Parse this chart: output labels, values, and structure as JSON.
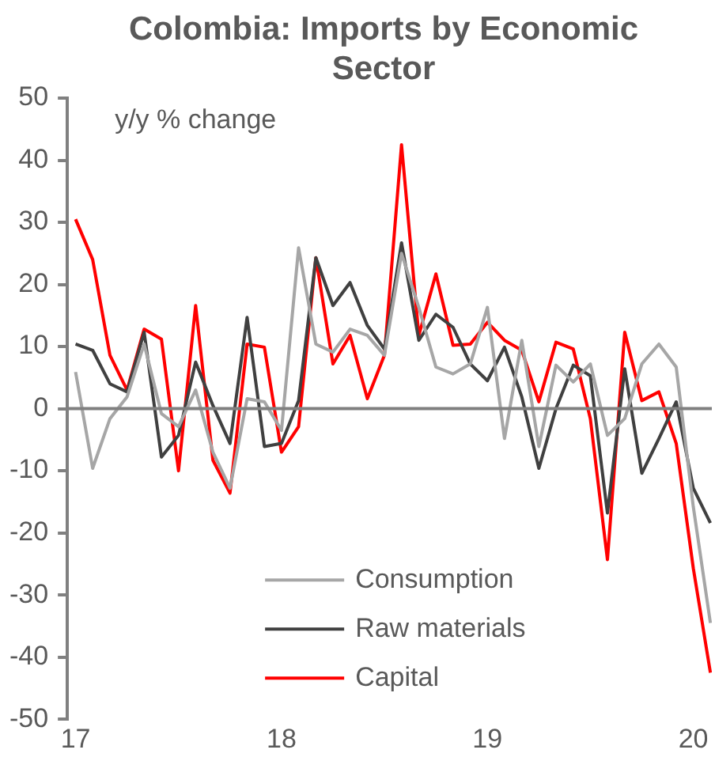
{
  "chart_data": {
    "type": "line",
    "title": "Colombia: Imports by Economic Sector",
    "annotations": [
      "y/y % change"
    ],
    "x": [
      17,
      17.083,
      17.167,
      17.25,
      17.333,
      17.417,
      17.5,
      17.583,
      17.667,
      17.75,
      17.833,
      17.917,
      18,
      18.083,
      18.167,
      18.25,
      18.333,
      18.417,
      18.5,
      18.583,
      18.667,
      18.75,
      18.833,
      18.917,
      19,
      19.083,
      19.167,
      19.25,
      19.333,
      19.417,
      19.5,
      19.583,
      19.667,
      19.75,
      19.833,
      19.917,
      20,
      20.083
    ],
    "series": [
      {
        "name": "Consumption",
        "color": "#a6a6a6",
        "values": [
          5.9,
          -9.6,
          -1.6,
          1.9,
          10.4,
          -0.8,
          -2.9,
          3,
          -7,
          -12.8,
          1.6,
          1.1,
          -3.5,
          25.9,
          10.4,
          9.1,
          12.8,
          11.8,
          8.6,
          25,
          16.3,
          6.7,
          5.6,
          7.2,
          16.3,
          -4.8,
          11,
          -6.1,
          7,
          4.3,
          7.2,
          -4.3,
          -1.6,
          7.2,
          10.4,
          6.7,
          -15.8,
          -34.5
        ]
      },
      {
        "name": "Raw materials",
        "color": "#404040",
        "values": [
          10.4,
          9.4,
          4,
          2.7,
          12.3,
          -7.8,
          -4.3,
          7.5,
          0.5,
          -5.6,
          14.7,
          -6.1,
          -5.6,
          1.3,
          24.3,
          16.6,
          20.3,
          13.4,
          9.6,
          26.7,
          11,
          15.2,
          13.1,
          7.2,
          4.5,
          9.9,
          1.9,
          -9.6,
          0,
          7,
          5.3,
          -16.8,
          6.4,
          -10.4,
          -4.8,
          1.1,
          -12.8,
          -18.4
        ]
      },
      {
        "name": "Capital",
        "color": "#ff0000",
        "values": [
          30.5,
          24,
          8.6,
          3,
          12.8,
          11.2,
          -10,
          16.6,
          -8.3,
          -13.6,
          10.4,
          9.9,
          -7,
          -2.9,
          24.3,
          7.2,
          11.8,
          1.6,
          8.6,
          42.5,
          11.8,
          21.7,
          10.2,
          10.4,
          13.9,
          11,
          9.4,
          1.1,
          10.7,
          9.6,
          -1.6,
          -24.3,
          12.3,
          1.3,
          2.7,
          -5.6,
          -25.7,
          -42.5
        ]
      }
    ],
    "xlim": [
      16.96,
      20.09
    ],
    "xticks": [
      17,
      18,
      19,
      20
    ],
    "ylim": [
      -50,
      50
    ],
    "yticks": [
      -50,
      -40,
      -30,
      -20,
      -10,
      0,
      10,
      20,
      30,
      40,
      50
    ],
    "ref_lines": [
      {
        "axis": "y",
        "value": 0,
        "color": "#808080"
      }
    ],
    "grid": false,
    "legend": "bottom",
    "marker": "none",
    "line_style": "solid"
  }
}
